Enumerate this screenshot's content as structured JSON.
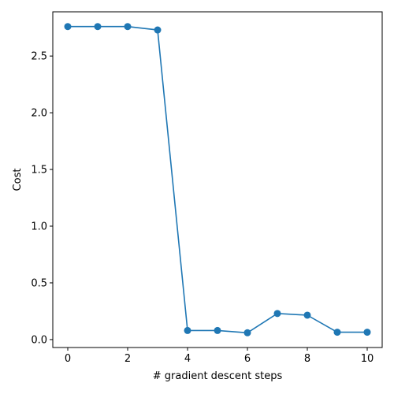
{
  "chart_data": {
    "type": "line",
    "x": [
      0,
      1,
      2,
      3,
      4,
      5,
      6,
      7,
      8,
      9,
      10
    ],
    "series": [
      {
        "values": [
          2.76,
          2.76,
          2.76,
          2.73,
          0.08,
          0.08,
          0.06,
          0.23,
          0.215,
          0.065,
          0.065
        ],
        "color": "#1f77b4",
        "marker": "circle"
      }
    ],
    "xlabel": "# gradient descent steps",
    "ylabel": "Cost",
    "xlim": [
      -0.5,
      10.5
    ],
    "ylim": [
      -0.07,
      2.89
    ],
    "xticks": [
      0,
      2,
      4,
      6,
      8,
      10
    ],
    "yticks": [
      0.0,
      0.5,
      1.0,
      1.5,
      2.0,
      2.5
    ],
    "xtick_labels": [
      "0",
      "2",
      "4",
      "6",
      "8",
      "10"
    ],
    "ytick_labels": [
      "0.0",
      "0.5",
      "1.0",
      "1.5",
      "2.0",
      "2.5"
    ],
    "grid": false,
    "legend": "none"
  }
}
